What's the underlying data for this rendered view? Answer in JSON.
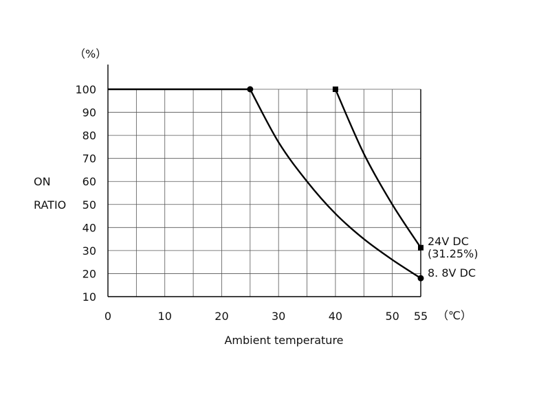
{
  "chart_data": {
    "type": "line",
    "y_unit_label": "（%）",
    "x_unit_label": "（℃）",
    "ylabel_lines": [
      "ON",
      "RATIO"
    ],
    "xlabel": "Ambient temperature",
    "xlim": [
      0,
      55
    ],
    "ylim": [
      10,
      100
    ],
    "x_ticks": [
      0,
      10,
      20,
      30,
      40,
      50,
      55
    ],
    "y_ticks": [
      10,
      20,
      30,
      40,
      50,
      60,
      70,
      80,
      90,
      100
    ],
    "x_grid": [
      0,
      5,
      10,
      15,
      20,
      25,
      30,
      35,
      40,
      45,
      50,
      55
    ],
    "grid": true,
    "series": [
      {
        "name": "8. 8V DC",
        "marker": "circle",
        "points": [
          [
            0,
            100
          ],
          [
            25,
            100
          ],
          [
            30,
            77
          ],
          [
            35,
            60
          ],
          [
            40,
            46
          ],
          [
            45,
            35
          ],
          [
            50,
            26
          ],
          [
            55,
            18
          ]
        ],
        "marker_points": [
          [
            25,
            100
          ],
          [
            55,
            18
          ]
        ]
      },
      {
        "name": "24V DC",
        "note": "(31.25%)",
        "marker": "square",
        "points": [
          [
            40,
            100
          ],
          [
            45,
            72
          ],
          [
            50,
            50
          ],
          [
            55,
            31.25
          ]
        ],
        "marker_points": [
          [
            40,
            100
          ],
          [
            55,
            31.25
          ]
        ]
      }
    ],
    "colors": {
      "line": "#000000",
      "grid": "#555555",
      "axis": "#000000"
    }
  }
}
